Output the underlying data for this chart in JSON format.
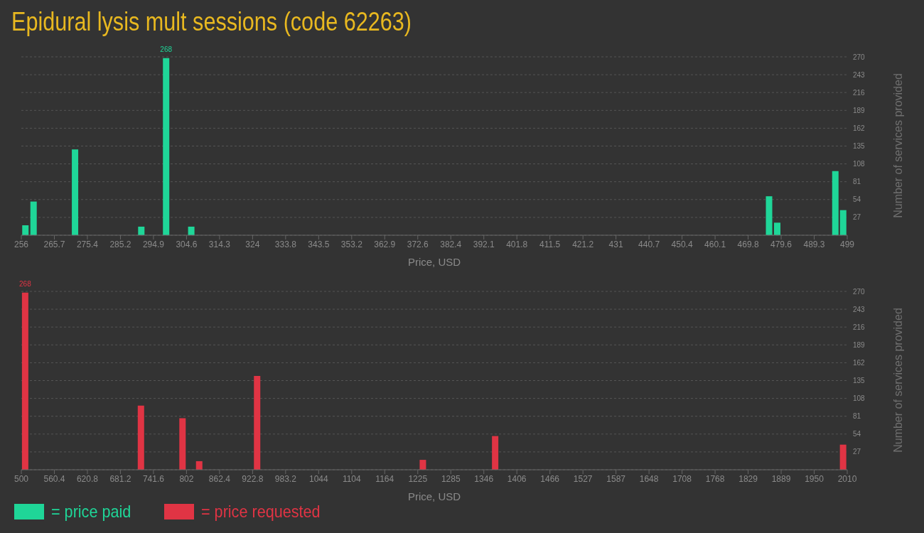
{
  "chart_data": [
    {
      "type": "bar",
      "title": "Epidural lysis mult sessions (code 62263)",
      "xlabel": "Price, USD",
      "ylabel": "Number of services provided",
      "x": [
        257.2,
        259.6,
        271.8,
        291.3,
        298.6,
        306,
        476,
        478.4,
        495.5,
        497.8
      ],
      "series": [
        {
          "name": "= price paid",
          "color": "#1fd698",
          "values": [
            15,
            51,
            130,
            13,
            268,
            13,
            59,
            19,
            97,
            38
          ],
          "value_labels": [
            null,
            null,
            null,
            null,
            "268",
            null,
            null,
            null,
            null,
            null
          ]
        }
      ],
      "xlim": [
        256,
        499
      ],
      "xticks": [
        256,
        {
          "value": 265.72,
          "label": "265.7"
        },
        {
          "value": 275.44,
          "label": "275.4"
        },
        {
          "value": 285.16,
          "label": "285.2"
        },
        {
          "value": 294.88,
          "label": "294.9"
        },
        304.6,
        {
          "value": 314.32,
          "label": "314.3"
        },
        {
          "value": 324.04,
          "label": "324"
        },
        {
          "value": 333.76,
          "label": "333.8"
        },
        {
          "value": 343.48,
          "label": "343.5"
        },
        353.2,
        {
          "value": 362.92,
          "label": "362.9"
        },
        {
          "value": 372.64,
          "label": "372.6"
        },
        {
          "value": 382.36,
          "label": "382.4"
        },
        {
          "value": 392.08,
          "label": "392.1"
        },
        401.8,
        {
          "value": 411.52,
          "label": "411.5"
        },
        {
          "value": 421.24,
          "label": "421.2"
        },
        {
          "value": 430.96,
          "label": "431"
        },
        {
          "value": 440.68,
          "label": "440.7"
        },
        450.4,
        {
          "value": 460.12,
          "label": "460.1"
        },
        {
          "value": 469.84,
          "label": "469.8"
        },
        {
          "value": 479.56,
          "label": "479.6"
        },
        {
          "value": 489.28,
          "label": "489.3"
        },
        499
      ],
      "ylim": [
        0,
        270
      ],
      "yticks": [
        27,
        54,
        81,
        108,
        135,
        162,
        189,
        216,
        243,
        270
      ],
      "grid": "y",
      "legend": "bottom left"
    },
    {
      "type": "bar",
      "xlabel": "Price, USD",
      "ylabel": "Number of services provided",
      "x": [
        507.3,
        719,
        795,
        825.5,
        931.4,
        1234.4,
        1366.6,
        2002.7
      ],
      "series": [
        {
          "name": "= price requested",
          "color": "#e03444",
          "values": [
            268,
            97,
            78,
            13,
            142,
            15,
            51,
            38
          ],
          "value_labels": [
            "268",
            null,
            null,
            null,
            null,
            null,
            null,
            null
          ]
        }
      ],
      "xlim": [
        500,
        2010
      ],
      "xticks": [
        500,
        560.4,
        620.8,
        681.2,
        741.6,
        802,
        862.4,
        922.8,
        983.2,
        {
          "value": 1043.6,
          "label": "1044"
        },
        1104,
        {
          "value": 1164.4,
          "label": "1164"
        },
        {
          "value": 1224.8,
          "label": "1225"
        },
        {
          "value": 1285.2,
          "label": "1285"
        },
        {
          "value": 1345.6,
          "label": "1346"
        },
        1406,
        {
          "value": 1466.4,
          "label": "1466"
        },
        {
          "value": 1526.8,
          "label": "1527"
        },
        {
          "value": 1587.2,
          "label": "1587"
        },
        {
          "value": 1647.6,
          "label": "1648"
        },
        1708,
        {
          "value": 1768.4,
          "label": "1768"
        },
        {
          "value": 1828.8,
          "label": "1829"
        },
        {
          "value": 1889.2,
          "label": "1889"
        },
        {
          "value": 1949.6,
          "label": "1950"
        },
        2010
      ],
      "ylim": [
        0,
        270
      ],
      "yticks": [
        27,
        54,
        81,
        108,
        135,
        162,
        189,
        216,
        243,
        270
      ],
      "grid": "y",
      "legend": "bottom left"
    }
  ]
}
